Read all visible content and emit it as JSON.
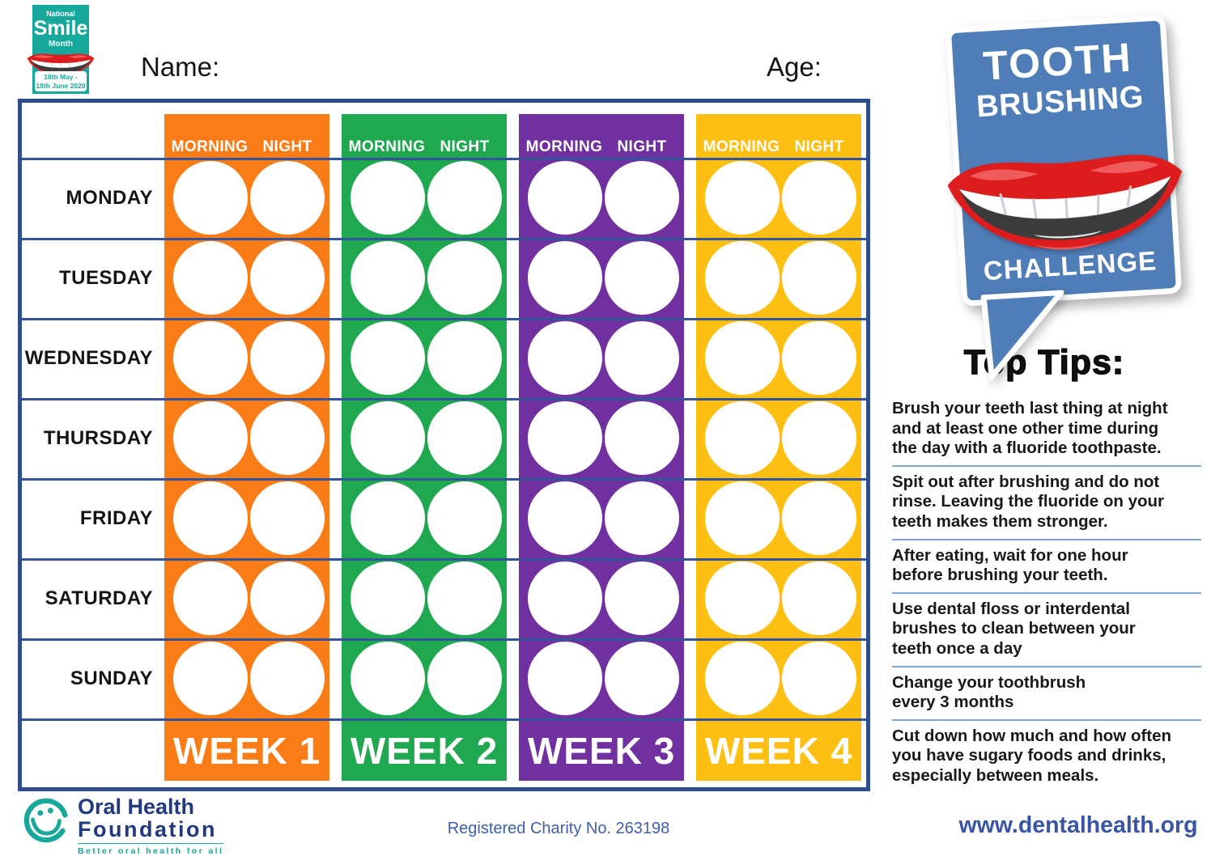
{
  "page": {
    "name_label": "Name:",
    "age_label": "Age:"
  },
  "smile_month_logo": {
    "line1": "National",
    "line2": "Smile",
    "line3": "Month",
    "date_line1": "18th May -",
    "date_line2": "18th June 2020"
  },
  "bubble_logo": {
    "line1": "TOOTH",
    "line2": "BRUSHING",
    "line3": "CHALLENGE"
  },
  "chart": {
    "days": [
      "MONDAY",
      "TUESDAY",
      "WEDNESDAY",
      "THURSDAY",
      "FRIDAY",
      "SATURDAY",
      "SUNDAY"
    ],
    "session_labels": {
      "morning": "MORNING",
      "night": "NIGHT"
    },
    "weeks": [
      {
        "label": "WEEK 1",
        "color": "#F97C17"
      },
      {
        "label": "WEEK 2",
        "color": "#1FA84F"
      },
      {
        "label": "WEEK 3",
        "color": "#7030A0"
      },
      {
        "label": "WEEK 4",
        "color": "#FCBF12"
      }
    ]
  },
  "top_tips": {
    "heading": "Top Tips:",
    "tips": [
      "Brush your teeth last thing at night\nand at least one other time during\nthe day with a fluoride toothpaste.",
      "Spit out after brushing and do not\nrinse. Leaving the fluoride on your\nteeth makes them stronger.",
      "After eating, wait for one hour\nbefore brushing your teeth.",
      "Use dental floss or interdental\nbrushes to clean between your\nteeth once a day",
      "Change your toothbrush\nevery 3 months",
      "Cut down how much and how often\nyou have sugary foods and drinks,\nespecially between meals."
    ]
  },
  "footer": {
    "ohf_logo": {
      "line1": "Oral Health",
      "line2": "Foundation",
      "tagline": "Better oral health for all"
    },
    "charity": "Registered Charity No. 263198",
    "website": "www.dentalhealth.org"
  },
  "colors": {
    "navy_border": "#2E4D8F",
    "row_line": "#35539A",
    "bubble_blue": "#4E7DB7",
    "teal": "#17A89C",
    "lips_red": "#DD1D1D",
    "tip_rule": "#7EA6D8",
    "charity_blue": "#3E5EAE",
    "website_blue": "#3A55A5",
    "ohf_navy": "#21397E"
  }
}
